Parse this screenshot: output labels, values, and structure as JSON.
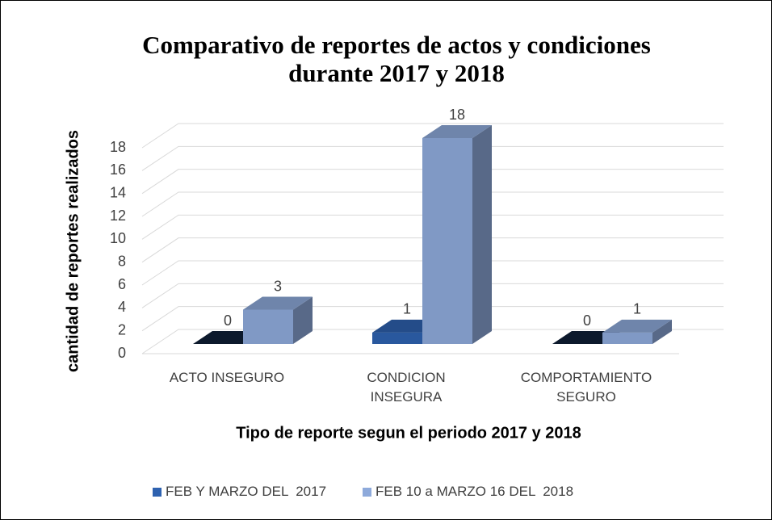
{
  "chart_data": {
    "type": "bar3d",
    "title": "Comparativo de reportes de actos y condiciones",
    "subtitle": "durante 2017 y 2018",
    "x_label": "Tipo de reporte segun el periodo 2017 y 2018",
    "y_label": "cantidad de reportes realizados",
    "categories": [
      "ACTO INSEGURO",
      "CONDICION INSEGURA",
      "COMPORTAMIENTO SEGURO"
    ],
    "series": [
      {
        "name": "FEB Y MARZO DEL  2017",
        "color": "#2e62b0",
        "values": [
          0,
          1,
          0
        ]
      },
      {
        "name": "FEB 10 a MARZO 16 DEL  2018",
        "color": "#8eaadb",
        "values": [
          3,
          18,
          1
        ]
      }
    ],
    "ylim": [
      0,
      18
    ],
    "yticks": [
      0,
      2,
      4,
      6,
      8,
      10,
      12,
      14,
      16,
      18
    ],
    "grid": true,
    "legend": "bottom"
  }
}
